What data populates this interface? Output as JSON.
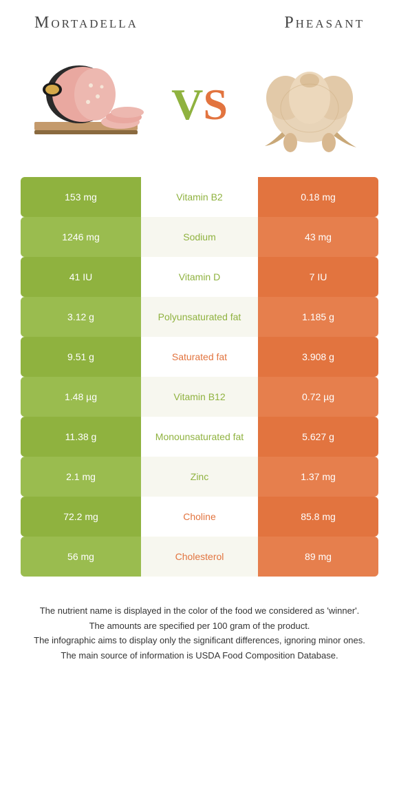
{
  "titles": {
    "left": "Mortadella",
    "right": "Pheasant"
  },
  "vs": {
    "v": "V",
    "s": "S"
  },
  "colors": {
    "green": "#8fb23f",
    "green_alt": "#9abc4f",
    "orange": "#e2743f",
    "orange_alt": "#e67f4d",
    "mid_bg": "#ffffff",
    "mid_bg_alt": "#f7f7ef"
  },
  "rows": [
    {
      "left": "153 mg",
      "mid": "Vitamin B2",
      "right": "0.18 mg",
      "winner": "left"
    },
    {
      "left": "1246 mg",
      "mid": "Sodium",
      "right": "43 mg",
      "winner": "left"
    },
    {
      "left": "41 IU",
      "mid": "Vitamin D",
      "right": "7 IU",
      "winner": "left"
    },
    {
      "left": "3.12 g",
      "mid": "Polyunsaturated fat",
      "right": "1.185 g",
      "winner": "left"
    },
    {
      "left": "9.51 g",
      "mid": "Saturated fat",
      "right": "3.908 g",
      "winner": "right"
    },
    {
      "left": "1.48 µg",
      "mid": "Vitamin B12",
      "right": "0.72 µg",
      "winner": "left"
    },
    {
      "left": "11.38 g",
      "mid": "Monounsaturated fat",
      "right": "5.627 g",
      "winner": "left"
    },
    {
      "left": "2.1 mg",
      "mid": "Zinc",
      "right": "1.37 mg",
      "winner": "left"
    },
    {
      "left": "72.2 mg",
      "mid": "Choline",
      "right": "85.8 mg",
      "winner": "right"
    },
    {
      "left": "56 mg",
      "mid": "Cholesterol",
      "right": "89 mg",
      "winner": "right"
    }
  ],
  "footnote": [
    "The nutrient name is displayed in the color of the food we considered as 'winner'.",
    "The amounts are specified per 100 gram of the product.",
    "The infographic aims to display only the significant differences, ignoring minor ones.",
    "The main source of information is USDA Food Composition Database."
  ]
}
